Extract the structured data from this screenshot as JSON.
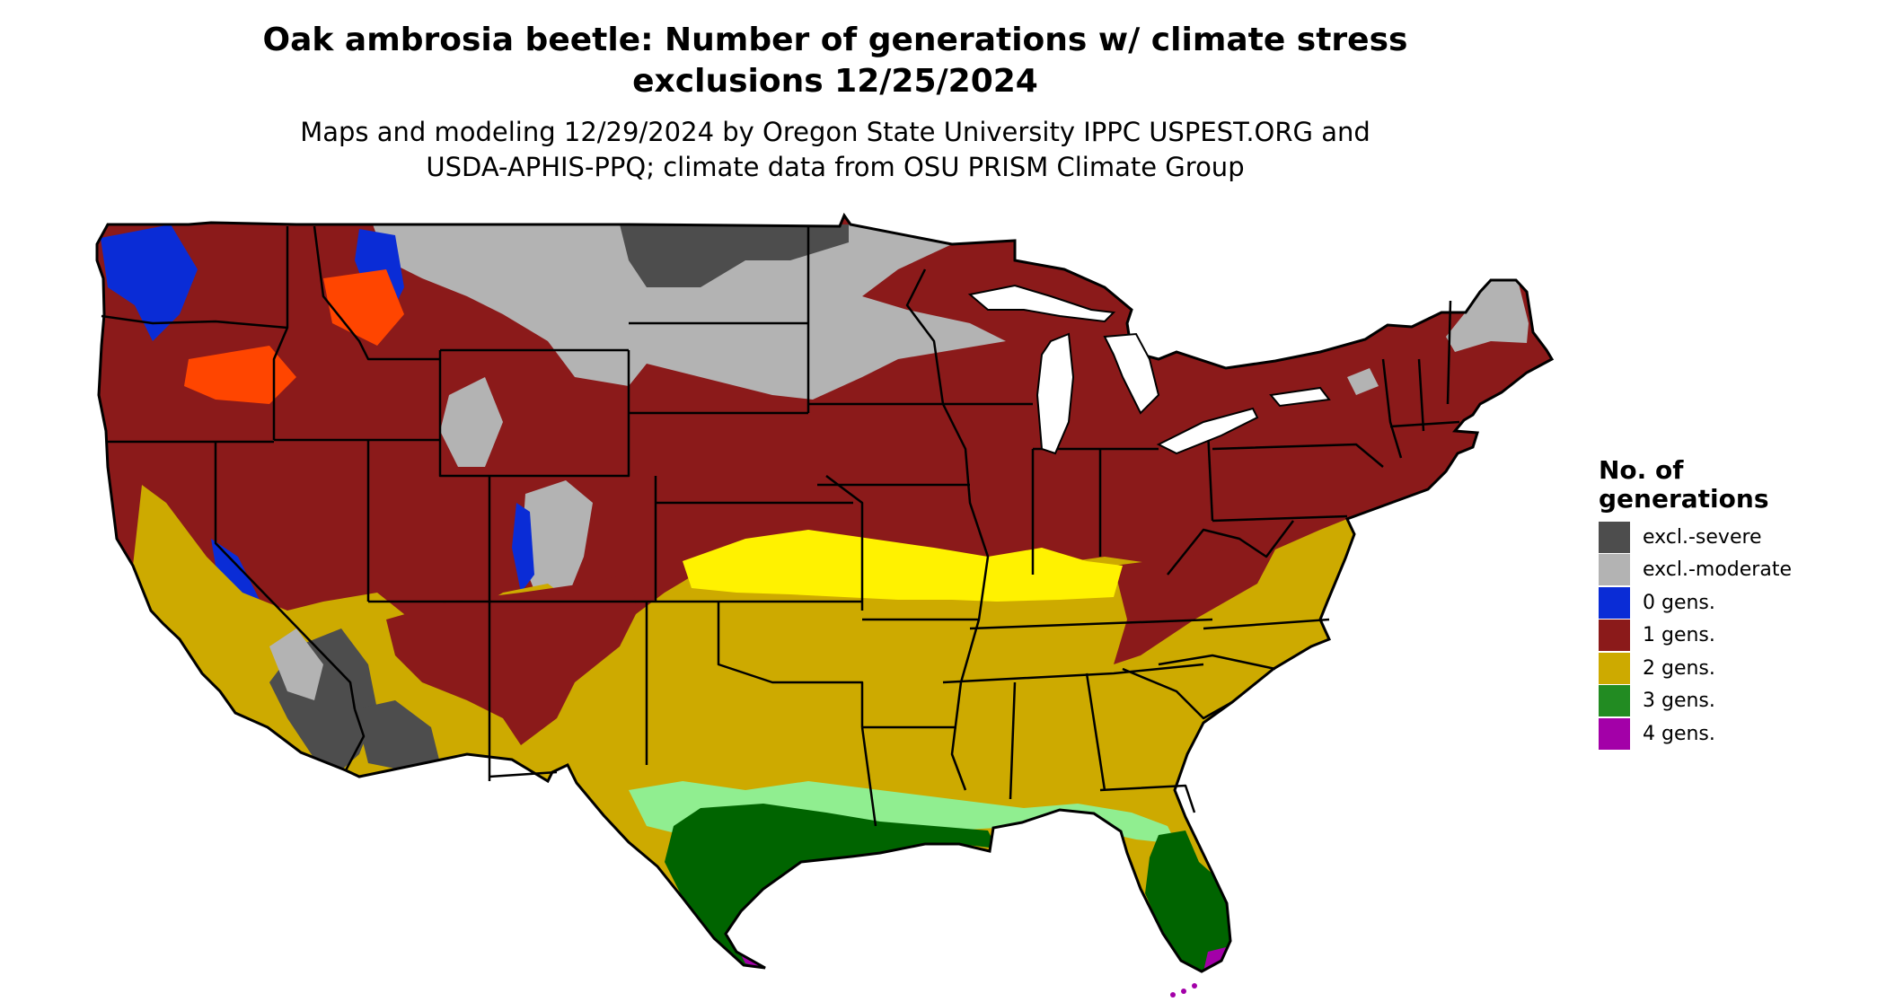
{
  "header": {
    "title_line1": "Oak ambrosia beetle: Number of generations w/ climate stress",
    "title_line2": "exclusions 12/25/2024",
    "subtitle_line1": "Maps and modeling 12/29/2024 by Oregon State University IPPC USPEST.ORG and",
    "subtitle_line2": "USDA-APHIS-PPQ; climate data from OSU PRISM Climate Group"
  },
  "legend": {
    "title_line1": "No. of",
    "title_line2": "generations",
    "items": [
      {
        "label": "excl.-severe",
        "color": "#4d4d4d"
      },
      {
        "label": "excl.-moderate",
        "color": "#b3b3b3"
      },
      {
        "label": "0 gens.",
        "color": "#0a2cd6"
      },
      {
        "label": "1 gens.",
        "color": "#8b1a1a"
      },
      {
        "label": "2 gens.",
        "color": "#cdaa00"
      },
      {
        "label": "3 gens.",
        "color": "#228b22"
      },
      {
        "label": "4 gens.",
        "color": "#a300a8"
      }
    ]
  },
  "map_colors": {
    "bright_yellow": "#fff200",
    "light_green": "#90ee90",
    "dark_green": "#006400",
    "orange_red": "#ff4500",
    "boundary": "#000000"
  }
}
